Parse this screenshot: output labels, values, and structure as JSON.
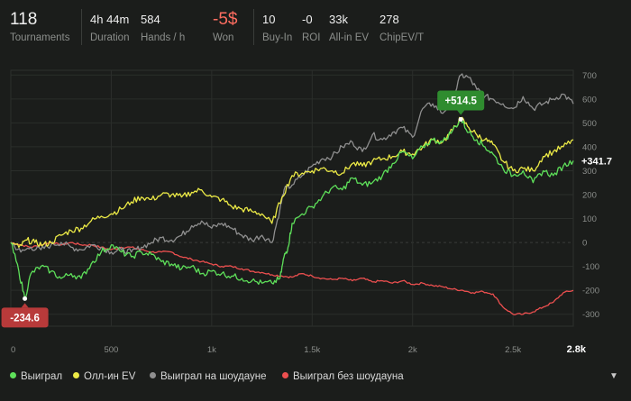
{
  "stats": {
    "tournaments": {
      "value": "118",
      "label": "Tournaments"
    },
    "duration": {
      "value": "4h 44m",
      "label": "Duration"
    },
    "hands_per_hour": {
      "value": "584",
      "label": "Hands / h"
    },
    "won": {
      "value": "-5$",
      "label": "Won"
    },
    "buy_in": {
      "value": "10",
      "label": "Buy-In"
    },
    "roi": {
      "value": "-0",
      "label": "ROI"
    },
    "all_in_ev": {
      "value": "33k",
      "label": "All-in EV"
    },
    "chip_ev": {
      "value": "278",
      "label": "ChipEV/T"
    }
  },
  "legend": {
    "won": "Выиграл",
    "all_in_ev": "Олл-ин EV",
    "showdown": "Выиграл на шоудауне",
    "non_showdown": "Выиграл без шоудауна"
  },
  "colors": {
    "won": "#5ee05a",
    "all_in_ev": "#ecea46",
    "showdown": "#8f8f8f",
    "non_showdown": "#ec4f4f",
    "badge_max": "#2f8c2f",
    "badge_min": "#b83a3a",
    "negative_text": "#ff6d60"
  },
  "chart_data": {
    "type": "line",
    "xlabel": "",
    "ylabel": "",
    "xlim": [
      0,
      2800
    ],
    "ylim": [
      -350,
      720
    ],
    "x_ticks": [
      0,
      500,
      1000,
      1500,
      2000,
      2500
    ],
    "x_tick_labels": [
      "0",
      "500",
      "1k",
      "1.5k",
      "2k",
      "2.5k"
    ],
    "x_end_label": "2.8k",
    "y_ticks": [
      -300,
      -200,
      -100,
      0,
      100,
      200,
      300,
      400,
      500,
      600,
      700
    ],
    "y_tick_labels": [
      "-300",
      "-200",
      "-100",
      "0",
      "100",
      "200",
      "300",
      "400",
      "500",
      "600",
      "700"
    ],
    "grid": true,
    "legend_position": "bottom",
    "annotations": {
      "max": {
        "label": "+514.5",
        "x": 2240,
        "y": 514.5
      },
      "min": {
        "label": "-234.6",
        "x": 70,
        "y": -234.6
      },
      "last": {
        "label": "+341.7",
        "y": 341.7
      }
    },
    "series": [
      {
        "key": "won",
        "name": "Выиграл",
        "x": [
          0,
          40,
          70,
          100,
          150,
          200,
          250,
          300,
          350,
          400,
          450,
          500,
          550,
          600,
          650,
          700,
          750,
          800,
          850,
          900,
          950,
          1000,
          1050,
          1100,
          1150,
          1200,
          1250,
          1300,
          1340,
          1360,
          1380,
          1400,
          1450,
          1500,
          1550,
          1600,
          1650,
          1700,
          1750,
          1800,
          1850,
          1900,
          1950,
          2000,
          2050,
          2100,
          2150,
          2200,
          2240,
          2280,
          2320,
          2360,
          2400,
          2450,
          2500,
          2550,
          2600,
          2650,
          2700,
          2750,
          2800
        ],
        "y": [
          0,
          -120,
          -234.6,
          -130,
          -100,
          -120,
          -150,
          -130,
          -150,
          -90,
          -40,
          -10,
          -40,
          -60,
          -40,
          -50,
          -80,
          -90,
          -110,
          -100,
          -130,
          -120,
          -130,
          -140,
          -150,
          -160,
          -170,
          -170,
          -150,
          -60,
          -20,
          80,
          120,
          150,
          190,
          230,
          220,
          270,
          240,
          250,
          280,
          330,
          380,
          350,
          400,
          430,
          420,
          470,
          514.5,
          460,
          430,
          400,
          370,
          310,
          280,
          300,
          250,
          300,
          280,
          320,
          341.7
        ]
      },
      {
        "key": "all_in_ev",
        "name": "Олл-ин EV",
        "x": [
          0,
          40,
          80,
          120,
          160,
          200,
          250,
          300,
          350,
          400,
          450,
          500,
          550,
          600,
          650,
          700,
          750,
          800,
          850,
          900,
          950,
          1000,
          1050,
          1100,
          1150,
          1200,
          1250,
          1300,
          1350,
          1400,
          1450,
          1500,
          1550,
          1600,
          1650,
          1700,
          1750,
          1800,
          1850,
          1900,
          1950,
          2000,
          2050,
          2100,
          2150,
          2200,
          2240,
          2280,
          2320,
          2360,
          2400,
          2450,
          2500,
          2550,
          2600,
          2650,
          2700,
          2750,
          2800
        ],
        "y": [
          0,
          -20,
          10,
          0,
          -10,
          0,
          30,
          50,
          60,
          90,
          110,
          120,
          140,
          170,
          190,
          180,
          200,
          200,
          190,
          210,
          220,
          190,
          180,
          150,
          140,
          130,
          120,
          80,
          190,
          280,
          290,
          300,
          310,
          300,
          290,
          330,
          320,
          340,
          350,
          360,
          380,
          370,
          400,
          430,
          420,
          470,
          520,
          480,
          450,
          430,
          410,
          340,
          300,
          310,
          300,
          360,
          380,
          400,
          430
        ]
      },
      {
        "key": "showdown",
        "name": "Выиграл на шоудауне",
        "x": [
          0,
          50,
          100,
          150,
          200,
          250,
          300,
          350,
          400,
          450,
          500,
          550,
          600,
          650,
          700,
          750,
          800,
          850,
          900,
          950,
          1000,
          1050,
          1100,
          1150,
          1200,
          1250,
          1300,
          1340,
          1360,
          1400,
          1450,
          1500,
          1550,
          1600,
          1650,
          1700,
          1750,
          1800,
          1850,
          1900,
          1950,
          2000,
          2050,
          2100,
          2150,
          2200,
          2240,
          2280,
          2320,
          2360,
          2400,
          2450,
          2500,
          2550,
          2600,
          2650,
          2700,
          2750,
          2800
        ],
        "y": [
          0,
          -40,
          -20,
          -30,
          -10,
          0,
          -20,
          -30,
          -10,
          -20,
          -40,
          -30,
          -40,
          -20,
          0,
          20,
          10,
          30,
          70,
          90,
          60,
          80,
          60,
          30,
          10,
          30,
          0,
          140,
          220,
          240,
          280,
          320,
          350,
          360,
          400,
          420,
          380,
          450,
          430,
          460,
          480,
          440,
          560,
          580,
          540,
          600,
          700,
          690,
          640,
          610,
          600,
          580,
          560,
          610,
          560,
          580,
          600,
          620,
          580
        ]
      },
      {
        "key": "non_showdown",
        "name": "Выиграл без шоудауна",
        "x": [
          0,
          50,
          100,
          150,
          200,
          250,
          300,
          350,
          400,
          450,
          500,
          550,
          600,
          650,
          700,
          750,
          800,
          850,
          900,
          950,
          1000,
          1050,
          1100,
          1150,
          1200,
          1250,
          1300,
          1350,
          1400,
          1450,
          1500,
          1550,
          1600,
          1650,
          1700,
          1750,
          1800,
          1850,
          1900,
          1950,
          2000,
          2050,
          2100,
          2150,
          2200,
          2250,
          2300,
          2350,
          2400,
          2450,
          2500,
          2550,
          2600,
          2650,
          2700,
          2750,
          2800
        ],
        "y": [
          0,
          -10,
          -20,
          -10,
          0,
          -10,
          0,
          -10,
          -10,
          -20,
          -30,
          -20,
          -20,
          -30,
          -40,
          -40,
          -40,
          -60,
          -70,
          -80,
          -90,
          -100,
          -100,
          -110,
          -120,
          -125,
          -135,
          -140,
          -145,
          -130,
          -140,
          -150,
          -155,
          -150,
          -160,
          -150,
          -165,
          -160,
          -170,
          -160,
          -175,
          -170,
          -180,
          -185,
          -195,
          -200,
          -210,
          -205,
          -215,
          -270,
          -300,
          -300,
          -290,
          -270,
          -250,
          -210,
          -200
        ]
      }
    ]
  }
}
